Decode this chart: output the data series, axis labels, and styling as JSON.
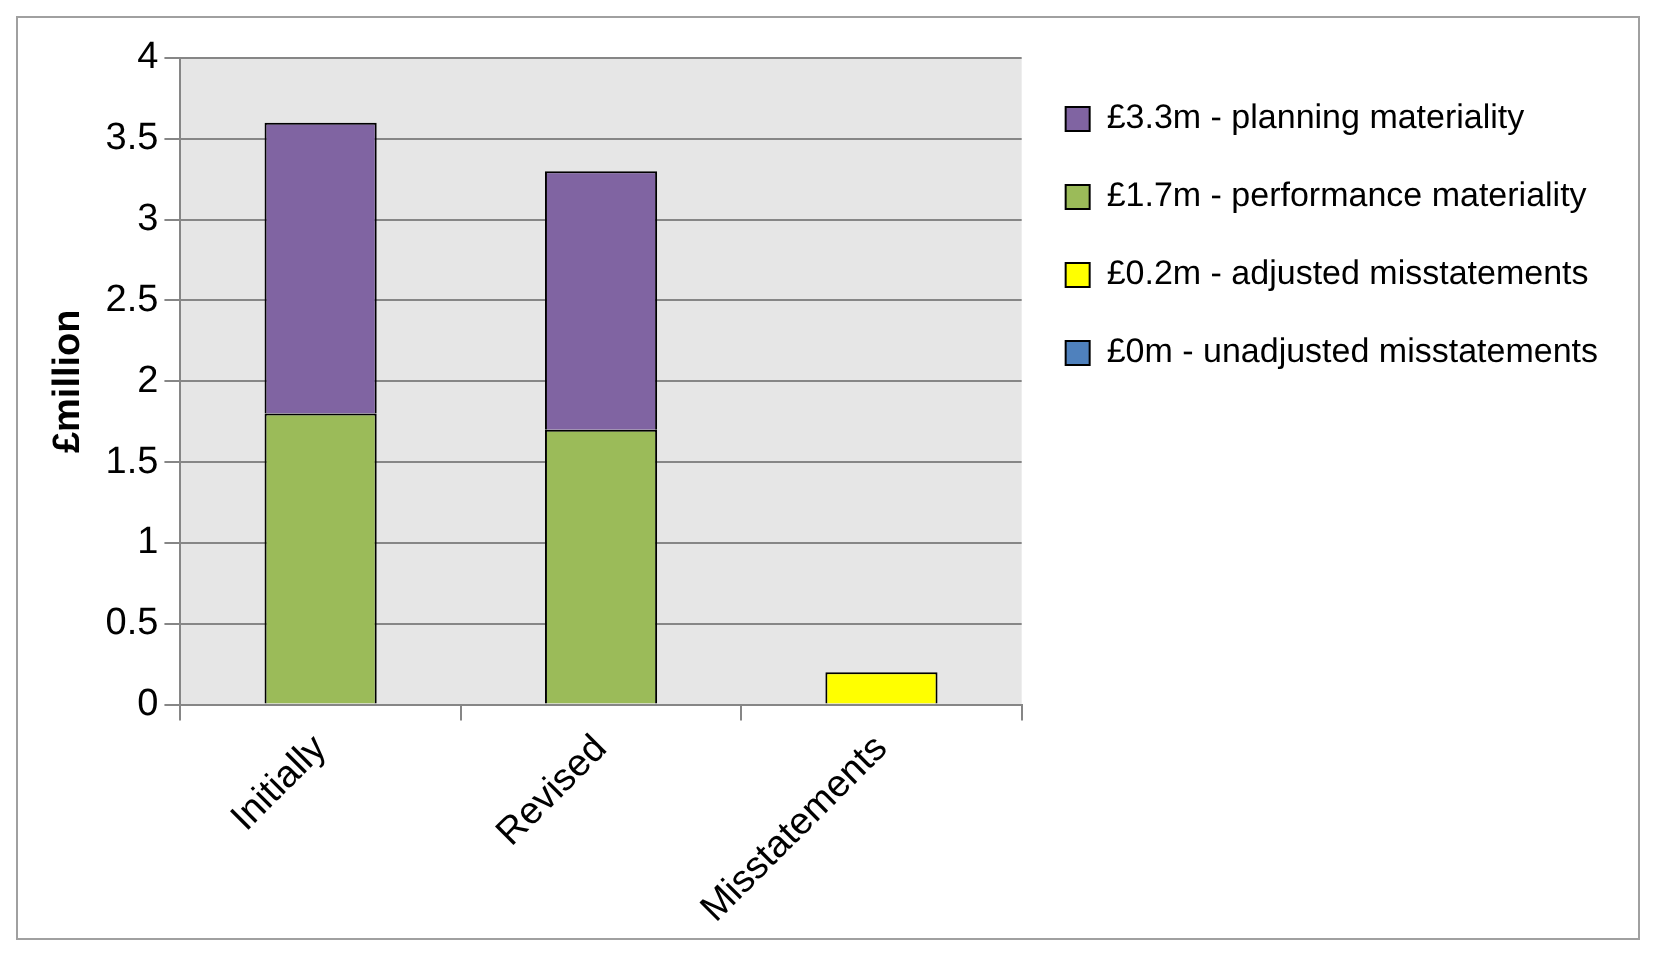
{
  "chart_data": {
    "type": "bar",
    "stacked": true,
    "ylabel": "£million",
    "categories": [
      "Initially",
      "Revised",
      "Misstatements"
    ],
    "series": [
      {
        "name": "£0m - unadjusted misstatements",
        "color": "#4f81bd",
        "values": [
          0,
          0,
          0
        ]
      },
      {
        "name": "£0.2m - adjusted misstatements",
        "color": "#ffff00",
        "values": [
          0,
          0,
          0.2
        ]
      },
      {
        "name": "£1.7m - performance materiality",
        "color": "#9bbb59",
        "values": [
          1.8,
          1.7,
          0
        ]
      },
      {
        "name": "£3.3m - planning materiality",
        "color": "#8064a2",
        "values": [
          1.8,
          1.6,
          0
        ]
      }
    ],
    "ylim": [
      0,
      4
    ],
    "yticks": [
      0,
      0.5,
      1,
      1.5,
      2,
      2.5,
      3,
      3.5,
      4
    ],
    "grid": "y",
    "legend": "right"
  }
}
